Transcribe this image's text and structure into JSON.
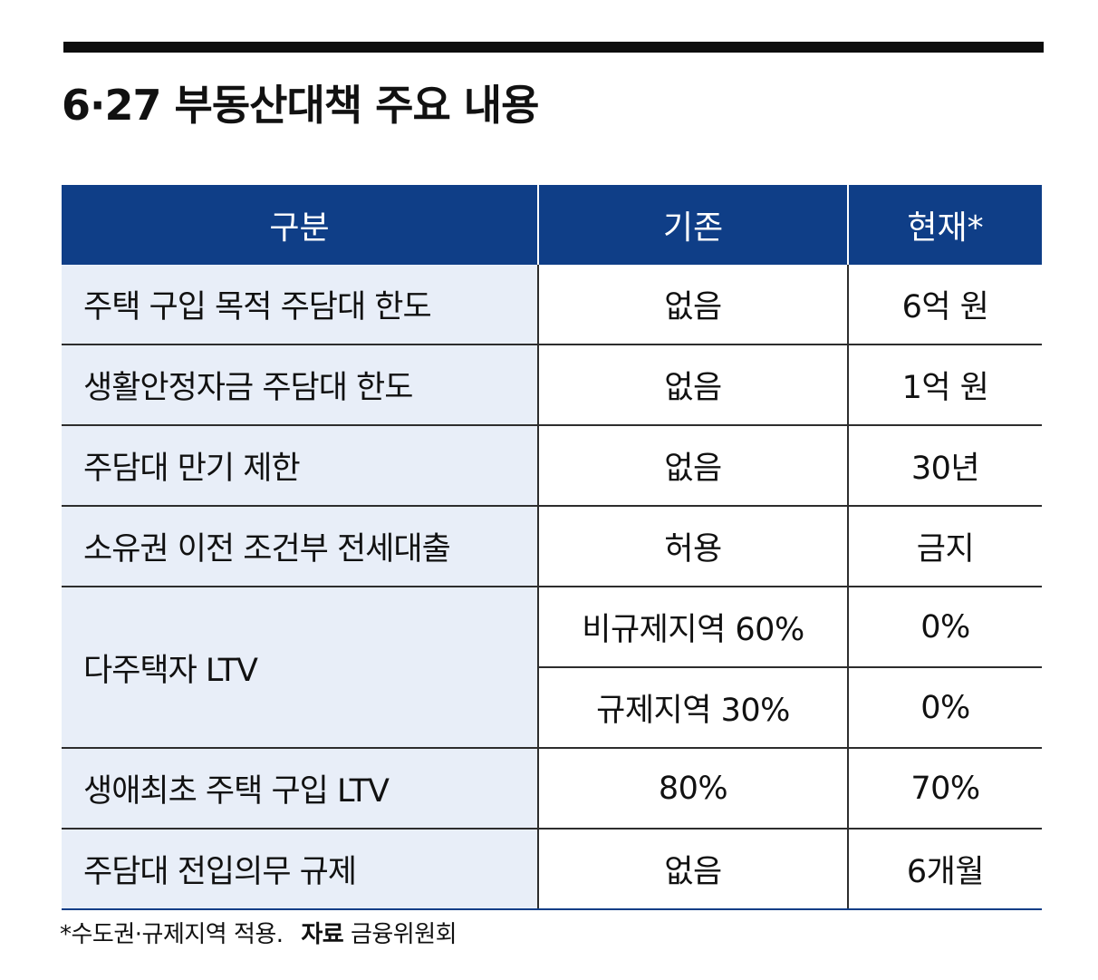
{
  "title": "6·27 부동산대책 주요 내용",
  "headers": [
    "구분",
    "기존",
    "현재*"
  ],
  "rows": [
    {
      "label": "주택 구입 목적 주담대 한도",
      "before": "없음",
      "now": "6억 원"
    },
    {
      "label": "생활안정자금 주담대 한도",
      "before": "없음",
      "now": "1억 원"
    },
    {
      "label": "주담대 만기 제한",
      "before": "없음",
      "now": "30년"
    },
    {
      "label": "소유권 이전 조건부 전세대출",
      "before": "허용",
      "now": "금지"
    },
    {
      "label": "다주택자 LTV",
      "sub": [
        {
          "before": "비규제지역 60%",
          "now": "0%"
        },
        {
          "before": "규제지역 30%",
          "now": "0%"
        }
      ]
    },
    {
      "label": "생애최초 주택 구입 LTV",
      "before": "80%",
      "now": "70%"
    },
    {
      "label": "주담대 전입의무 규제",
      "before": "없음",
      "now": "6개월"
    }
  ],
  "footnote": {
    "note": "*수도권·규제지역 적용.",
    "source_label": "자료",
    "source": "금융위원회"
  },
  "colors": {
    "header_bg": "#0f3e87",
    "label_bg": "#e8eef8"
  }
}
